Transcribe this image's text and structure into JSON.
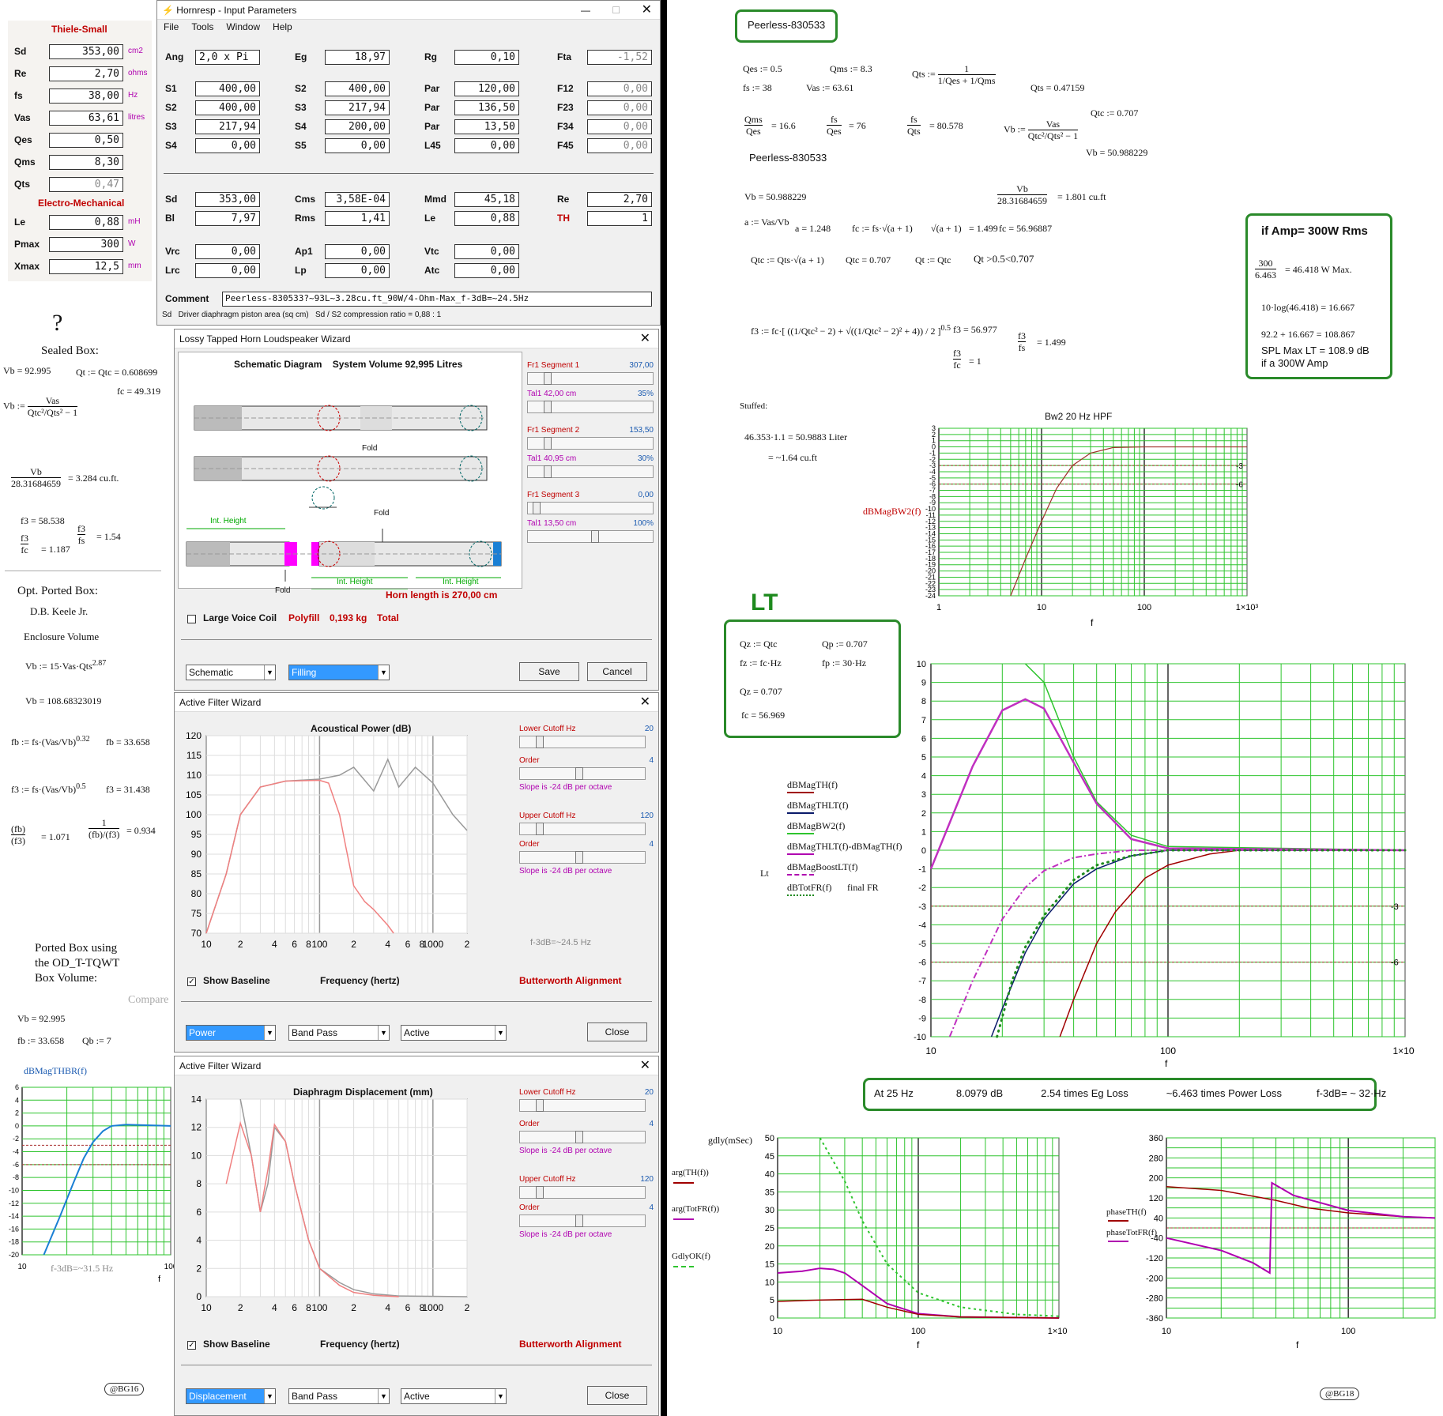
{
  "thiele_small": {
    "title": "Thiele-Small",
    "rows": [
      {
        "label": "Sd",
        "value": "353,00",
        "unit": "cm2"
      },
      {
        "label": "Re",
        "value": "2,70",
        "unit": "ohms"
      },
      {
        "label": "fs",
        "value": "38,00",
        "unit": "Hz"
      },
      {
        "label": "Vas",
        "value": "63,61",
        "unit": "litres"
      },
      {
        "label": "Qes",
        "value": "0,50",
        "unit": ""
      },
      {
        "label": "Qms",
        "value": "8,30",
        "unit": ""
      },
      {
        "label": "Qts",
        "value": "0,47",
        "unit": ""
      }
    ],
    "em_title": "Electro-Mechanical",
    "em_rows": [
      {
        "label": "Le",
        "value": "0,88",
        "unit": "mH"
      },
      {
        "label": "Pmax",
        "value": "300",
        "unit": "W"
      },
      {
        "label": "Xmax",
        "value": "12,5",
        "unit": "mm"
      }
    ]
  },
  "hornresp": {
    "title": "Hornresp - Input Parameters",
    "menu": [
      "File",
      "Tools",
      "Window",
      "Help"
    ],
    "grid": [
      [
        [
          "Ang",
          "2,0 x Pi"
        ],
        [
          "Eg",
          "18,97"
        ],
        [
          "Rg",
          "0,10"
        ],
        [
          "Fta",
          "-1,52"
        ]
      ],
      [
        [
          "S1",
          "400,00"
        ],
        [
          "S2",
          "400,00"
        ],
        [
          "Par",
          "120,00"
        ],
        [
          "F12",
          "0,00"
        ]
      ],
      [
        [
          "S2",
          "400,00"
        ],
        [
          "S3",
          "217,94"
        ],
        [
          "Par",
          "136,50"
        ],
        [
          "F23",
          "0,00"
        ]
      ],
      [
        [
          "S3",
          "217,94"
        ],
        [
          "S4",
          "200,00"
        ],
        [
          "Par",
          "13,50"
        ],
        [
          "F34",
          "0,00"
        ]
      ],
      [
        [
          "S4",
          "0,00"
        ],
        [
          "S5",
          "0,00"
        ],
        [
          "L45",
          "0,00"
        ],
        [
          "F45",
          "0,00"
        ]
      ],
      [
        [
          "Sd",
          "353,00"
        ],
        [
          "Cms",
          "3,58E-04"
        ],
        [
          "Mmd",
          "45,18"
        ],
        [
          "Re",
          "2,70"
        ]
      ],
      [
        [
          "Bl",
          "7,97"
        ],
        [
          "Rms",
          "1,41"
        ],
        [
          "Le",
          "0,88"
        ],
        [
          "TH",
          "1"
        ]
      ],
      [
        [
          "Vrc",
          "0,00"
        ],
        [
          "Ap1",
          "0,00"
        ],
        [
          "Vtc",
          "0,00"
        ]
      ],
      [
        [
          "Lrc",
          "0,00"
        ],
        [
          "Lp",
          "0,00"
        ],
        [
          "Atc",
          "0,00"
        ]
      ]
    ],
    "comment_label": "Comment",
    "comment": "Peerless-830533?~93L~3.28cu.ft_90W/4-Ohm-Max_f-3dB=~24.5Hz",
    "status": "Sd   Driver diaphragm piston area (sq cm)   Sd / S2 compression ratio = 0,88 : 1"
  },
  "wizard_horn": {
    "title": "Lossy Tapped Horn Loudspeaker Wizard",
    "heading": "Schematic Diagram    System Volume 92,995 Litres",
    "fold": "Fold",
    "int_height": "Int. Height",
    "horn_length": "Horn length is 270,00 cm",
    "segments": [
      {
        "label": "Fr1  Segment 1",
        "value": "307,00",
        "tail": "Tal1  42,00 cm",
        "pct": "35%"
      },
      {
        "label": "Fr1  Segment 2",
        "value": "153,50",
        "tail": "Tal1  40,95 cm",
        "pct": "30%"
      },
      {
        "label": "Fr1  Segment 3",
        "value": "0,00",
        "tail": "Tal1  13,50 cm",
        "pct": "100%"
      }
    ],
    "large_voice_coil": "Large Voice Coil",
    "polyfill": "Polyfill",
    "polyfill_val": "0,193 kg",
    "total": "Total",
    "combo1": "Schematic",
    "combo2": "Filling",
    "save": "Save",
    "cancel": "Cancel"
  },
  "afw1": {
    "title": "Active Filter Wizard",
    "plot_title": "Acoustical Power (dB)",
    "yticks": [
      "120",
      "115",
      "110",
      "105",
      "100",
      "95",
      "90",
      "85",
      "80",
      "75",
      "70"
    ],
    "xticks": [
      "10",
      "2",
      "4",
      "6",
      "8",
      "100",
      "2",
      "4",
      "6",
      "8",
      "1000",
      "2"
    ],
    "xlabel": "Frequency (hertz)",
    "lower_cutoff": "Lower Cutoff  Hz",
    "lower_val": "20",
    "order": "Order",
    "order_val": "4",
    "slope": "Slope is -24 dB per octave",
    "upper_cutoff": "Upper Cutoff  Hz",
    "upper_val": "120",
    "f3db": "f-3dB=~24.5 Hz",
    "show_baseline": "Show Baseline",
    "alignment": "Butterworth Alignment",
    "combos": [
      "Power",
      "Band Pass",
      "Active"
    ],
    "close": "Close"
  },
  "afw2": {
    "title": "Active Filter Wizard",
    "plot_title": "Diaphragm Displacement (mm)",
    "yticks": [
      "14",
      "12",
      "10",
      "8",
      "6",
      "4",
      "2",
      "0"
    ],
    "xticks": [
      "10",
      "2",
      "4",
      "6",
      "8",
      "100",
      "2",
      "4",
      "6",
      "8",
      "1000",
      "2"
    ],
    "xlabel": "Frequency (hertz)",
    "combos": [
      "Displacement",
      "Band Pass",
      "Active"
    ],
    "close": "Close"
  },
  "left_notes": {
    "question": "?",
    "sealed": "Sealed Box:",
    "vb_sealed": "Vb = 92.995",
    "qt_sealed": "Qt := Qtc = 0.608699",
    "fc_sealed": "fc = 49.319",
    "cuft": "= 3.284  cu.ft.",
    "f3": "f3 = 58.538",
    "f3fc": "= 1.187",
    "f3fs": "= 1.54",
    "opt_ported": "Opt. Ported Box:",
    "keele": "D.B. Keele Jr.",
    "enc_vol": "Enclosure Volume",
    "vb_ported": "Vb = 108.68323019",
    "fb": "fb = 33.658",
    "f3p": "f3 = 31.438",
    "ratio1": "= 1.071",
    "ratio2": "= 0.934",
    "tqwt1": "Ported Box using",
    "tqwt2": "the OD_T-TQWT",
    "tqwt3": "Box Volume:",
    "compare": "Compare",
    "vb3": "Vb = 92.995",
    "fb3": "fb := 33.658",
    "qb": "Qb := 7",
    "graph_label": "dBMagTHBR(f)",
    "f3_small": "f-3dB=~31.5 Hz",
    "sig": "@BG16"
  },
  "right_notes": {
    "peerless": "Peerless-830533",
    "qes": "Qes := 0.5",
    "qms": "Qms := 8.3",
    "fs": "fs := 38",
    "vas": "Vas := 63.61",
    "qts": "Qts = 0.47159",
    "qtc": "Qtc := 0.707",
    "vb_val": "Vb = 50.988229",
    "qmsqes": "= 16.6",
    "fsqes": "= 76",
    "fsqts": "= 80.578",
    "peerless2": "Peerless-830533",
    "vb2": "Vb = 50.988229",
    "cuft": "= 1.801    cu.ft",
    "a": "a = 1.248",
    "fc": "fc = 56.96887",
    "sqrt": "= 1.499",
    "qtc_eq": "Qtc = 0.707",
    "qt_eq": "Qt := Qtc",
    "qt_range": "Qt >0.5<0.707",
    "f3": "f3 = 56.977",
    "f3fs": "= 1.499",
    "f3fc": "= 1",
    "stuffed": "Stuffed:",
    "liter": "46.353·1.1 = 50.9883  Liter",
    "cuft2": "= ~1.64 cu.ft",
    "amp_title": "if Amp= 300W Rms",
    "amp1": "= 46.418    W Max.",
    "amp2": "10·log(46.418) = 16.667",
    "amp3": "92.2 + 16.667 = 108.867",
    "amp4": "SPL Max LT =  108.9 dB",
    "amp5": "if a 300W Amp",
    "lt": "LT",
    "lt_qz": "Qz := Qtc",
    "lt_qp": "Qp := 0.707",
    "lt_fz": "fz := fc·Hz",
    "lt_fp": "fp := 30·Hz",
    "lt_qz2": "Qz = 0.707",
    "lt_fc": "fc = 56.969",
    "summary": [
      "At  25 Hz",
      "8.0979 dB",
      "2.54 times Eg Loss",
      "~6.463 times  Power Loss",
      "f-3dB= ~ 32·Hz"
    ],
    "sig": "@BG18"
  },
  "chart_data": [
    {
      "type": "line",
      "title": "Bw2 20 Hz HPF",
      "xlabel": "f",
      "ylabel": "dBMagBW2(f)",
      "xlim": [
        1,
        1000
      ],
      "ylim": [
        -24,
        3
      ],
      "log_x": true,
      "series": [
        {
          "name": "dBMagBW2(f)",
          "x": [
            5,
            7,
            10,
            14,
            20,
            30,
            50,
            100,
            1000
          ],
          "y": [
            -24,
            -18,
            -12,
            -6.7,
            -3,
            -1,
            -0.1,
            0,
            0
          ]
        }
      ]
    },
    {
      "type": "line",
      "xlabel": "f",
      "xlim": [
        10,
        1000
      ],
      "ylim": [
        -10,
        10
      ],
      "log_x": true,
      "series": [
        {
          "name": "dBMagTH(f)",
          "x": [
            35,
            40,
            50,
            60,
            80,
            100,
            150,
            200,
            1000
          ],
          "y": [
            -10,
            -8,
            -5,
            -3.3,
            -1.5,
            -0.8,
            -0.2,
            0,
            0
          ]
        },
        {
          "name": "dBMagTHLT(f)",
          "x": [
            18,
            20,
            25,
            30,
            40,
            50,
            70,
            100,
            1000
          ],
          "y": [
            -10,
            -8.5,
            -5.5,
            -3.7,
            -1.8,
            -1,
            -0.3,
            0,
            0
          ]
        },
        {
          "name": "dBMagTHLT(f)-dBMagTH(f)",
          "x": [
            10,
            15,
            20,
            25,
            30,
            40,
            50,
            70,
            100,
            1000
          ],
          "y": [
            -1,
            4.5,
            7.5,
            8.1,
            7.6,
            4.7,
            2.5,
            0.6,
            0.1,
            0
          ]
        },
        {
          "name": "dBMagBW2(f)",
          "x": [
            25,
            30,
            40,
            50,
            70,
            100,
            1000
          ],
          "y": [
            10,
            9,
            5,
            2.6,
            0.8,
            0.2,
            0
          ]
        },
        {
          "name": "dBMagBoostLT(f)",
          "x": [
            12,
            15,
            20,
            25,
            30,
            40,
            50,
            70,
            1000
          ],
          "y": [
            -10,
            -7,
            -3.7,
            -2,
            -1.1,
            -0.4,
            -0.2,
            0,
            0
          ]
        },
        {
          "name": "dBTotFR(f)",
          "x": [
            19,
            22,
            25,
            30,
            40,
            50,
            70,
            100,
            1000
          ],
          "y": [
            -10,
            -7,
            -5.2,
            -3.5,
            -1.6,
            -0.8,
            -0.3,
            0,
            0
          ]
        }
      ]
    },
    {
      "type": "line",
      "xlabel": "f",
      "ylabel": "gdly(mSec)",
      "xlim": [
        10,
        1000
      ],
      "ylim": [
        0,
        50
      ],
      "log_x": true,
      "series": [
        {
          "name": "arg(TH(f))",
          "x": [
            10,
            20,
            40,
            60,
            100,
            200,
            1000
          ],
          "y": [
            4.6,
            5,
            5.2,
            3,
            1,
            0.3,
            0
          ]
        },
        {
          "name": "arg(TotFR(f))",
          "x": [
            10,
            15,
            20,
            25,
            30,
            40,
            60,
            100,
            200,
            1000
          ],
          "y": [
            12.5,
            13,
            13.8,
            13.5,
            12.5,
            9,
            4,
            1.2,
            0.3,
            0
          ]
        },
        {
          "name": "GdlyOK(f)",
          "x": [
            20,
            30,
            40,
            60,
            100,
            200,
            500,
            1000
          ],
          "y": [
            50,
            38,
            27,
            15,
            7,
            3,
            1,
            0.5
          ]
        }
      ]
    },
    {
      "type": "line",
      "xlabel": "f",
      "xlim": [
        10,
        300
      ],
      "ylim": [
        -360,
        360
      ],
      "log_x": true,
      "series": [
        {
          "name": "phaseTH(f)",
          "x": [
            10,
            20,
            40,
            60,
            100,
            200,
            300
          ],
          "y": [
            165,
            150,
            110,
            80,
            60,
            45,
            40
          ]
        },
        {
          "name": "phaseTotFR(f)",
          "x": [
            10,
            20,
            30,
            37,
            38,
            50,
            100,
            200,
            300
          ],
          "y": [
            -40,
            -90,
            -140,
            -180,
            180,
            130,
            70,
            45,
            40
          ]
        }
      ]
    },
    {
      "type": "line",
      "title": "Acoustical Power (dB)",
      "xlabel": "Frequency (hertz)",
      "xlim": [
        10,
        2000
      ],
      "ylim": [
        70,
        120
      ],
      "log_x": true,
      "series": [
        {
          "name": "Baseline",
          "x": [
            10,
            15,
            20,
            30,
            50,
            100,
            150,
            200,
            300,
            400,
            500,
            700,
            1000,
            1500,
            2000
          ],
          "y": [
            70,
            85,
            100,
            107,
            108.5,
            109,
            110,
            112,
            106,
            114,
            107,
            112,
            108,
            100,
            96
          ]
        },
        {
          "name": "Filtered",
          "x": [
            10,
            15,
            20,
            30,
            50,
            100,
            120,
            150,
            170,
            200,
            250,
            300,
            400,
            450
          ],
          "y": [
            70,
            85,
            100,
            107,
            108.5,
            108.7,
            108,
            100,
            92,
            82,
            78,
            76,
            72,
            70
          ]
        }
      ]
    },
    {
      "type": "line",
      "title": "Diaphragm Displacement (mm)",
      "xlabel": "Frequency (hertz)",
      "xlim": [
        10,
        2000
      ],
      "ylim": [
        0,
        14
      ],
      "log_x": true,
      "series": [
        {
          "name": "Baseline",
          "x": [
            20,
            25,
            30,
            35,
            40,
            50,
            60,
            80,
            100,
            150,
            200,
            300,
            500,
            2000
          ],
          "y": [
            14,
            10,
            6,
            8,
            12,
            11,
            8,
            4,
            2,
            1,
            0.5,
            0.2,
            0.05,
            0
          ]
        },
        {
          "name": "Filtered",
          "x": [
            15,
            20,
            25,
            30,
            35,
            40,
            50,
            60,
            80,
            100,
            150,
            200,
            300,
            500
          ],
          "y": [
            8,
            12.3,
            10,
            6,
            9,
            12.2,
            11,
            8,
            4,
            2,
            0.8,
            0.3,
            0.1,
            0
          ]
        }
      ]
    },
    {
      "type": "line",
      "ylabel": "dBMagTHBR(f)",
      "xlabel": "f",
      "xlim": [
        10,
        100
      ],
      "ylim": [
        -20,
        6
      ],
      "log_x": true,
      "series": [
        {
          "name": "dBMagTHBR(f)",
          "x": [
            14,
            18,
            22,
            26,
            30,
            35,
            40,
            50,
            100
          ],
          "y": [
            -20,
            -14,
            -9,
            -5,
            -2.5,
            -0.8,
            0,
            0.2,
            0
          ]
        }
      ]
    }
  ]
}
